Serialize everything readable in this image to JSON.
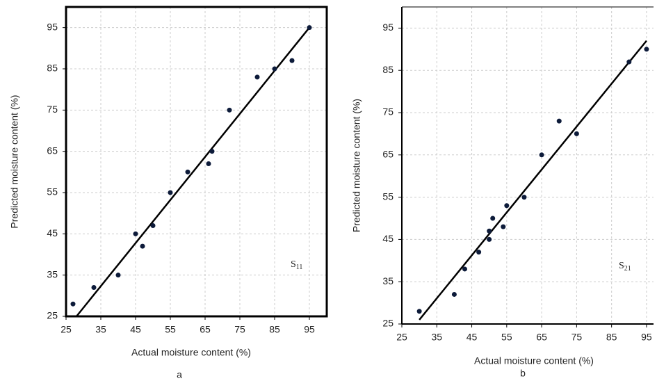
{
  "chart_data": [
    {
      "type": "scatter",
      "xlabel": "Actual moisture content (%)",
      "ylabel": "Predicted moisture content (%)",
      "sublabel": "a",
      "annotation": "S",
      "annotation_sub": "11",
      "color": "#0d1b3a",
      "frame": true,
      "grid": true,
      "x": [
        27,
        33,
        40,
        45,
        47,
        50,
        55,
        60,
        66,
        67,
        72,
        80,
        85,
        90,
        95
      ],
      "y": [
        28,
        32,
        35,
        45,
        42,
        47,
        55,
        60,
        62,
        65,
        75,
        83,
        85,
        87,
        95
      ],
      "fit_line": {
        "x": [
          28,
          95
        ],
        "y": [
          25,
          95
        ]
      },
      "xlim": [
        25,
        100
      ],
      "ylim": [
        25,
        100
      ],
      "xticks": [
        25,
        35,
        45,
        55,
        65,
        75,
        85,
        95
      ],
      "yticks": [
        25,
        35,
        45,
        55,
        65,
        75,
        85,
        95
      ]
    },
    {
      "type": "scatter",
      "xlabel": "Actual moisture content (%)",
      "ylabel": "Predicted moisture content (%)",
      "sublabel": "b",
      "annotation": "S",
      "annotation_sub": "21",
      "color": "#0d1b3a",
      "frame": false,
      "grid": true,
      "x": [
        30,
        40,
        43,
        47,
        50,
        50,
        51,
        54,
        55,
        60,
        65,
        70,
        75,
        90,
        95
      ],
      "y": [
        28,
        32,
        38,
        42,
        47,
        45,
        50,
        48,
        53,
        55,
        65,
        73,
        70,
        87,
        90
      ],
      "fit_line": {
        "x": [
          30,
          95
        ],
        "y": [
          26,
          92
        ]
      },
      "xlim": [
        25,
        97
      ],
      "ylim": [
        25,
        100
      ],
      "xticks": [
        25,
        35,
        45,
        55,
        65,
        75,
        85,
        95
      ],
      "yticks": [
        25,
        35,
        45,
        55,
        65,
        75,
        85,
        95
      ]
    }
  ]
}
